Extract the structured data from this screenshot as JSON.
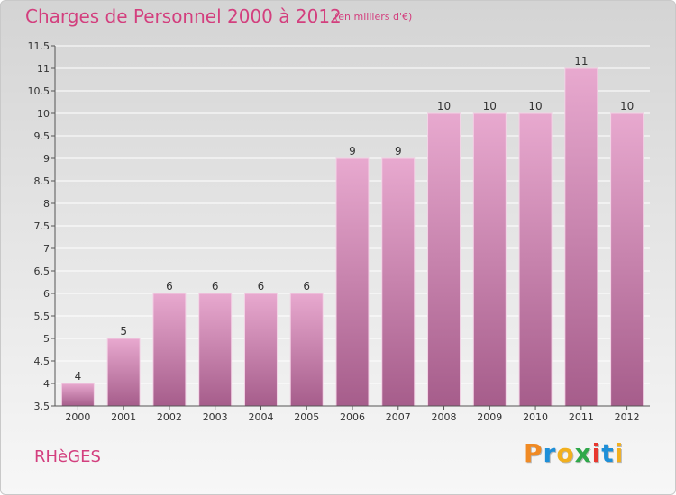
{
  "title": "Charges de Personnel 2000 à 2012",
  "subtitle": "(en milliers d'€)",
  "commune": "RHèGES",
  "logo": {
    "letters": [
      "P",
      "r",
      "o",
      "x",
      "i",
      "t",
      "i"
    ],
    "colors": [
      "#f08a24",
      "#1e8fd8",
      "#f2b01e",
      "#2fa84a",
      "#e8382f",
      "#1e8fd8",
      "#f2b01e"
    ]
  },
  "colors": {
    "bar": "#cf8fb5",
    "bar_light": "#e8a9cf",
    "bar_dark": "#a65d8b",
    "accent": "#d33f7e"
  },
  "chart_data": {
    "type": "bar",
    "title": "Charges de Personnel 2000 à 2012",
    "subtitle": "(en milliers d'€)",
    "categories": [
      "2000",
      "2001",
      "2002",
      "2003",
      "2004",
      "2005",
      "2006",
      "2007",
      "2008",
      "2009",
      "2010",
      "2011",
      "2012"
    ],
    "values": [
      4,
      5,
      6,
      6,
      6,
      6,
      9,
      9,
      10,
      10,
      10,
      11,
      10
    ],
    "data_labels": [
      "4",
      "5",
      "6",
      "6",
      "6",
      "6",
      "9",
      "9",
      "10",
      "10",
      "10",
      "11",
      "10"
    ],
    "ylim": [
      3.5,
      11.5
    ],
    "yticks": [
      3.5,
      4,
      4.5,
      5,
      5.5,
      6,
      6.5,
      7,
      7.5,
      8,
      8.5,
      9,
      9.5,
      10,
      10.5,
      11,
      11.5
    ],
    "ytick_labels": [
      "3.5",
      "4",
      "4.5",
      "5",
      "5.5",
      "6",
      "6.5",
      "7",
      "7.5",
      "8",
      "8.5",
      "9",
      "9.5",
      "10",
      "10.5",
      "11",
      "11.5"
    ],
    "grid": true,
    "xlabel": "",
    "ylabel": ""
  }
}
